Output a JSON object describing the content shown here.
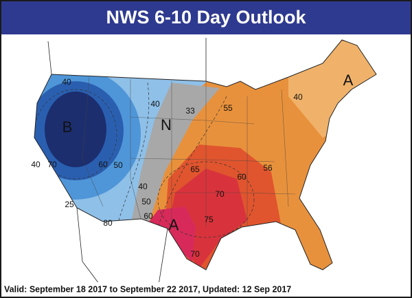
{
  "header": {
    "title": "NWS 6-10 Day Outlook"
  },
  "map": {
    "region_labels": [
      "B",
      "N",
      "A",
      "A"
    ],
    "contour_labels": [
      "40",
      "70",
      "60",
      "50",
      "40",
      "25",
      "40",
      "33",
      "55",
      "65",
      "70",
      "60",
      "56",
      "40",
      "50",
      "60",
      "75",
      "70",
      "40",
      "80"
    ]
  },
  "footer": {
    "text": "Valid: September 18 2017 to September 22 2017, Updated: 12 Sep 2017"
  }
}
